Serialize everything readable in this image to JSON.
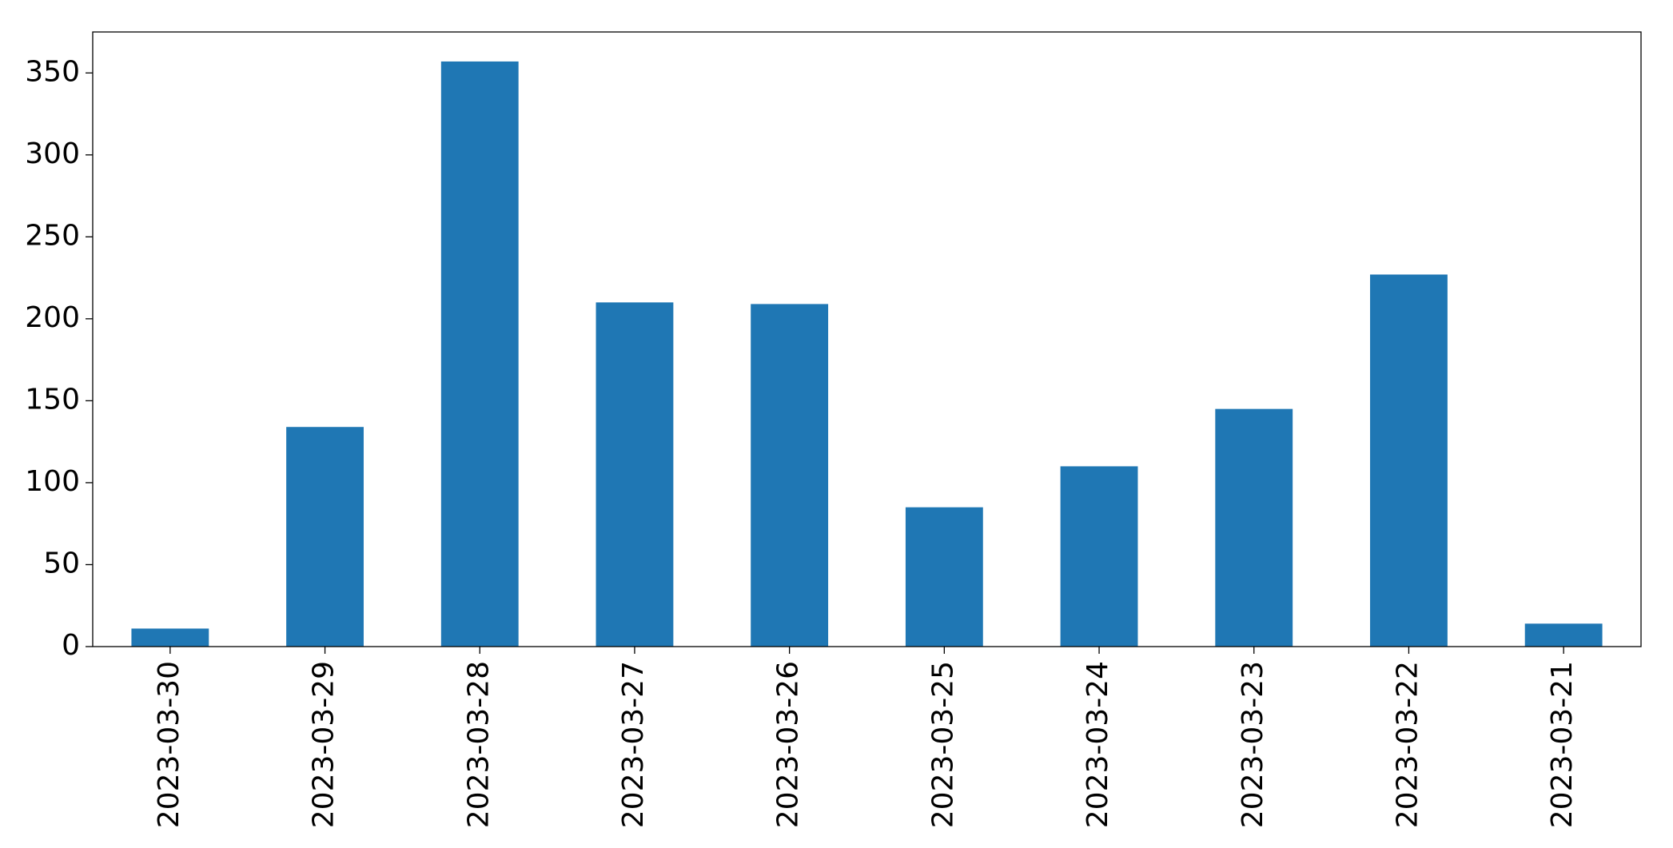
{
  "chart_data": {
    "type": "bar",
    "categories": [
      "2023-03-30",
      "2023-03-29",
      "2023-03-28",
      "2023-03-27",
      "2023-03-26",
      "2023-03-25",
      "2023-03-24",
      "2023-03-23",
      "2023-03-22",
      "2023-03-21"
    ],
    "values": [
      11,
      134,
      357,
      210,
      209,
      85,
      110,
      145,
      227,
      14
    ],
    "color": "#1f77b4",
    "ylim": [
      0,
      375
    ],
    "yticks": [
      0,
      50,
      100,
      150,
      200,
      250,
      300,
      350
    ],
    "grid": false
  }
}
